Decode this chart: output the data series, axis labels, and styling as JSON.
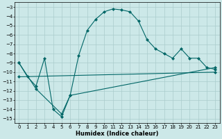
{
  "xlabel": "Humidex (Indice chaleur)",
  "background_color": "#cce8e8",
  "grid_color": "#aacccc",
  "line_color": "#006666",
  "xlim": [
    -0.5,
    23.5
  ],
  "ylim": [
    -15.5,
    -2.5
  ],
  "yticks": [
    -15,
    -14,
    -13,
    -12,
    -11,
    -10,
    -9,
    -8,
    -7,
    -6,
    -5,
    -4,
    -3
  ],
  "xticks": [
    0,
    1,
    2,
    3,
    4,
    5,
    6,
    7,
    8,
    9,
    10,
    11,
    12,
    13,
    14,
    15,
    16,
    17,
    18,
    19,
    20,
    21,
    22,
    23
  ],
  "line1_x": [
    0,
    1,
    2,
    3,
    4,
    5,
    6,
    7,
    8,
    9,
    10,
    11,
    12,
    13,
    14,
    15,
    16,
    17,
    18,
    19,
    20,
    21,
    22,
    23
  ],
  "line1_y": [
    -9,
    -10.5,
    -11.5,
    -8.5,
    -14.0,
    -14.8,
    -12.5,
    -8.2,
    -5.5,
    -4.3,
    -3.5,
    -3.2,
    -3.3,
    -3.5,
    -4.5,
    -6.5,
    -7.5,
    -8.0,
    -8.5,
    -7.5,
    -8.5,
    -8.5,
    -9.5,
    -9.7
  ],
  "line2_x": [
    0,
    2,
    5,
    6,
    23
  ],
  "line2_y": [
    -9.0,
    -11.8,
    -14.5,
    -12.5,
    -9.5
  ],
  "line3_x": [
    0,
    23
  ],
  "line3_y": [
    -10.5,
    -10.0
  ],
  "marker_size": 2.5,
  "linewidth": 0.8,
  "tick_fontsize": 5.0,
  "xlabel_fontsize": 6.0
}
